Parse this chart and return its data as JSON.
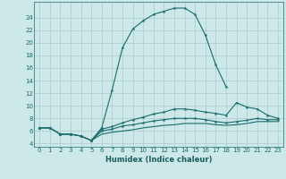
{
  "title": "",
  "xlabel": "Humidex (Indice chaleur)",
  "xlim": [
    -0.5,
    23.5
  ],
  "ylim": [
    3.5,
    26.5
  ],
  "yticks": [
    4,
    6,
    8,
    10,
    12,
    14,
    16,
    18,
    20,
    22,
    24
  ],
  "xticks": [
    0,
    1,
    2,
    3,
    4,
    5,
    6,
    7,
    8,
    9,
    10,
    11,
    12,
    13,
    14,
    15,
    16,
    17,
    18,
    19,
    20,
    21,
    22,
    23
  ],
  "bg_color": "#cde8e8",
  "grid_color": "#aacccc",
  "line_color": "#1a6b6b",
  "line1_x": [
    0,
    1,
    2,
    3,
    4,
    5,
    6,
    7,
    8,
    9,
    10,
    11,
    12,
    13,
    14,
    15,
    16,
    17,
    18
  ],
  "line1_y": [
    6.5,
    6.5,
    5.5,
    5.5,
    5.2,
    4.5,
    6.5,
    12.5,
    19.2,
    22.2,
    23.5,
    24.5,
    25.0,
    25.5,
    25.5,
    24.5,
    21.2,
    16.5,
    13.0
  ],
  "line2_x": [
    0,
    1,
    2,
    3,
    4,
    5,
    6,
    7,
    8,
    9,
    10,
    11,
    12,
    13,
    14,
    15,
    16,
    17,
    18,
    19,
    20,
    21,
    22,
    23
  ],
  "line2_y": [
    6.5,
    6.5,
    5.5,
    5.5,
    5.2,
    4.5,
    6.3,
    6.7,
    7.3,
    7.8,
    8.2,
    8.7,
    9.0,
    9.5,
    9.5,
    9.3,
    9.0,
    8.8,
    8.5,
    10.5,
    9.8,
    9.5,
    8.5,
    8.0
  ],
  "line3_x": [
    0,
    1,
    2,
    3,
    4,
    5,
    6,
    7,
    8,
    9,
    10,
    11,
    12,
    13,
    14,
    15,
    16,
    17,
    18,
    19,
    20,
    21,
    22,
    23
  ],
  "line3_y": [
    6.5,
    6.5,
    5.5,
    5.5,
    5.2,
    4.5,
    6.0,
    6.3,
    6.8,
    7.0,
    7.3,
    7.6,
    7.8,
    8.0,
    8.0,
    8.0,
    7.8,
    7.5,
    7.3,
    7.5,
    7.7,
    8.0,
    7.8,
    7.8
  ],
  "line4_x": [
    5,
    6,
    7,
    8,
    9,
    10,
    11,
    12,
    13,
    14,
    15,
    16,
    17,
    18,
    19,
    20,
    21,
    22,
    23
  ],
  "line4_y": [
    4.5,
    5.5,
    5.8,
    6.0,
    6.2,
    6.5,
    6.7,
    6.9,
    7.0,
    7.2,
    7.2,
    7.2,
    7.0,
    6.9,
    7.0,
    7.2,
    7.5,
    7.5,
    7.5
  ],
  "tick_fontsize": 5.0,
  "xlabel_fontsize": 6.0,
  "xlabel_color": "#1a5c5c"
}
